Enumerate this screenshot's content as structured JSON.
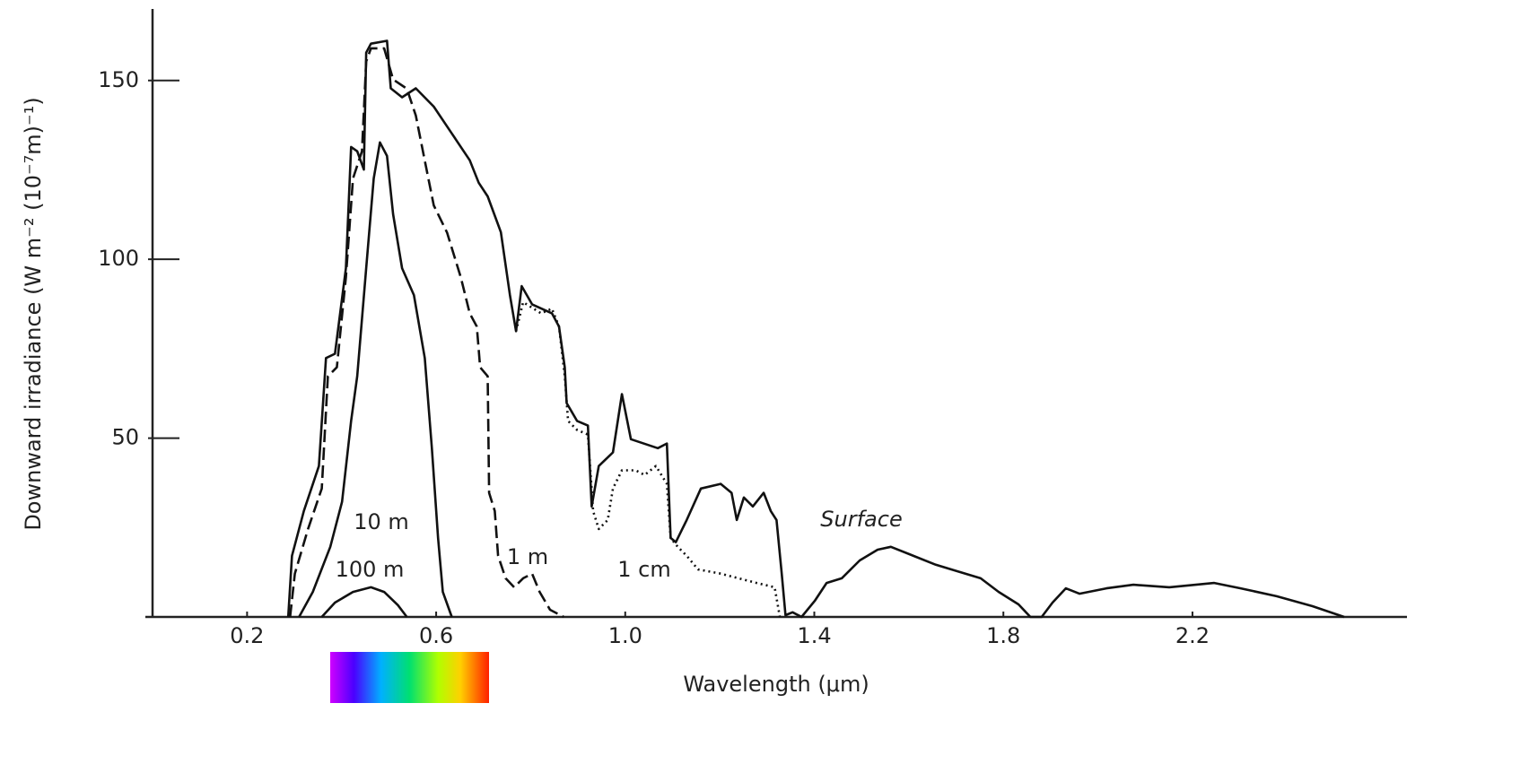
{
  "chart_data": {
    "type": "line",
    "xlabel": "Wavelength (μm)",
    "ylabel": "Downward irradiance (W m⁻² (10⁻⁷m)⁻¹)",
    "xlim": [
      0,
      2.65
    ],
    "ylim": [
      0,
      170
    ],
    "xticks": [
      0.2,
      0.6,
      {
        "value": 1,
        "label": "1.0"
      },
      1.4,
      1.8,
      2.2
    ],
    "yticks": [
      50,
      100,
      150
    ],
    "series": [
      {
        "name": "Surface",
        "color": "#111",
        "dash": "solid",
        "x": [
          0.287,
          0.295,
          0.32,
          0.352,
          0.367,
          0.386,
          0.409,
          0.42,
          0.433,
          0.447,
          0.452,
          0.462,
          0.496,
          0.504,
          0.528,
          0.557,
          0.595,
          0.633,
          0.671,
          0.69,
          0.709,
          0.737,
          0.756,
          0.769,
          0.781,
          0.803,
          0.845,
          0.86,
          0.872,
          0.876,
          0.898,
          0.921,
          0.929,
          0.944,
          0.974,
          0.993,
          1.012,
          1.069,
          1.088,
          1.096,
          1.107,
          1.13,
          1.16,
          1.202,
          1.225,
          1.236,
          1.251,
          1.27,
          1.293,
          1.308,
          1.32,
          1.331,
          1.339,
          1.354,
          1.373,
          1.401,
          1.426,
          1.458,
          1.496,
          1.534,
          1.562,
          1.657,
          1.752,
          1.79,
          1.832,
          1.857,
          1.881,
          1.904,
          1.932,
          1.961,
          2.018,
          2.075,
          2.151,
          2.246,
          2.302,
          2.378,
          2.454,
          2.521
        ],
        "values": [
          0,
          17.1,
          29.6,
          42.2,
          72.4,
          73.6,
          97.5,
          131.4,
          130.2,
          125.1,
          157.8,
          160.3,
          161.1,
          147.8,
          145.3,
          147.8,
          142.7,
          135.2,
          127.7,
          121.4,
          117.6,
          107.6,
          90.0,
          79.9,
          92.5,
          87.4,
          84.9,
          81.2,
          69.8,
          59.8,
          54.8,
          53.5,
          30.9,
          42.2,
          46.0,
          62.3,
          49.7,
          47.2,
          48.5,
          22.1,
          20.9,
          27.1,
          35.9,
          37.2,
          34.7,
          27.1,
          33.4,
          30.9,
          34.7,
          29.6,
          27.1,
          12.1,
          0.5,
          1.3,
          0,
          4.5,
          9.5,
          10.8,
          15.8,
          18.8,
          19.6,
          14.6,
          10.8,
          7.0,
          3.5,
          0,
          0,
          4.0,
          8.0,
          6.5,
          8.0,
          9.0,
          8.3,
          9.5,
          8.0,
          5.8,
          3.0,
          0
        ]
      },
      {
        "name": "1 cm",
        "color": "#111",
        "dash": "dotted",
        "x": [
          0.769,
          0.784,
          0.822,
          0.845,
          0.86,
          0.872,
          0.879,
          0.898,
          0.921,
          0.932,
          0.944,
          0.963,
          0.974,
          0.993,
          1.022,
          1.041,
          1.065,
          1.088,
          1.096,
          1.111,
          1.13,
          1.154,
          1.202,
          1.278,
          1.316,
          1.327
        ],
        "values": [
          79.9,
          88.0,
          84.9,
          86.2,
          81.2,
          67.3,
          54.8,
          52.3,
          51.0,
          29.6,
          24.6,
          27.1,
          35.9,
          41.0,
          41.0,
          39.7,
          42.2,
          37.2,
          22.1,
          19.6,
          17.1,
          13.3,
          12.1,
          9.5,
          8.3,
          0
        ]
      },
      {
        "name": "1 m",
        "color": "#111",
        "dash": "dashed",
        "x": [
          0.291,
          0.301,
          0.329,
          0.358,
          0.371,
          0.39,
          0.409,
          0.424,
          0.443,
          0.452,
          0.462,
          0.49,
          0.509,
          0.538,
          0.557,
          0.576,
          0.595,
          0.623,
          0.652,
          0.671,
          0.686,
          0.693,
          0.709,
          0.712,
          0.724,
          0.731,
          0.747,
          0.765,
          0.784,
          0.803,
          0.819,
          0.841,
          0.87
        ],
        "values": [
          0,
          12.1,
          24.6,
          35.9,
          67.3,
          69.8,
          95.0,
          122.6,
          130.2,
          155.3,
          159.0,
          159.0,
          150.3,
          147.7,
          140.2,
          127.6,
          115.1,
          107.5,
          95.0,
          84.9,
          81.2,
          69.8,
          67.3,
          34.7,
          29.6,
          17.1,
          10.8,
          8.3,
          10.8,
          12.1,
          7.0,
          2.0,
          0
        ]
      },
      {
        "name": "10 m",
        "color": "#111",
        "dash": "solid",
        "x": [
          0.31,
          0.339,
          0.376,
          0.401,
          0.42,
          0.433,
          0.452,
          0.468,
          0.481,
          0.496,
          0.509,
          0.528,
          0.553,
          0.576,
          0.591,
          0.604,
          0.614,
          0.633
        ],
        "values": [
          0,
          7.0,
          19.6,
          32.2,
          54.8,
          67.3,
          97.5,
          122.6,
          132.7,
          128.9,
          112.6,
          97.5,
          90.0,
          72.4,
          47.2,
          22.1,
          7.0,
          0
        ]
      },
      {
        "name": "100 m",
        "color": "#111",
        "dash": "solid",
        "x": [
          0.358,
          0.386,
          0.424,
          0.462,
          0.49,
          0.519,
          0.538
        ],
        "values": [
          0,
          4.0,
          7.0,
          8.3,
          7.0,
          3.3,
          0
        ]
      }
    ]
  }
}
